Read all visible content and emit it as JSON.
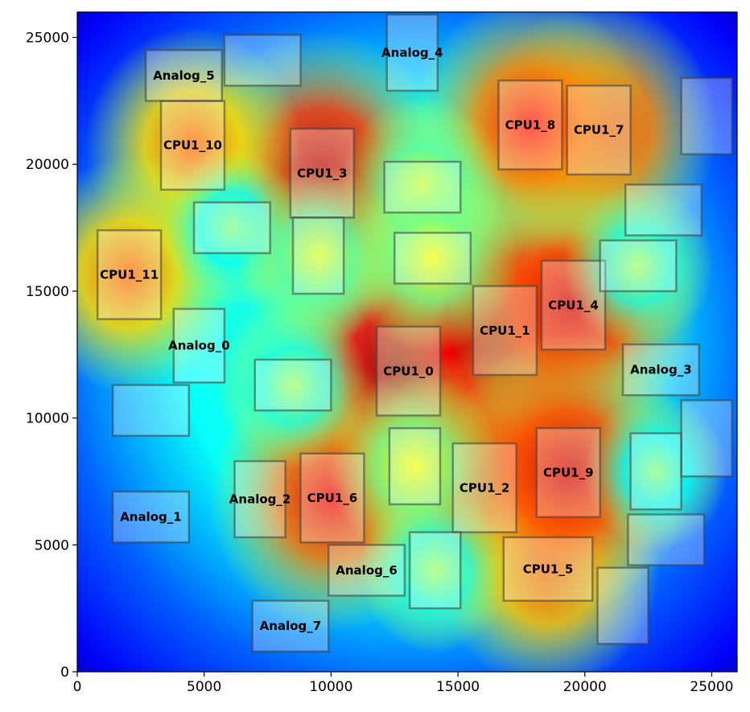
{
  "chart_data": {
    "type": "heatmap",
    "title": "",
    "xlabel": "",
    "ylabel": "",
    "xlim": [
      0,
      26000
    ],
    "ylim": [
      0,
      26000
    ],
    "xticks": [
      0,
      5000,
      10000,
      15000,
      20000,
      25000
    ],
    "yticks": [
      0,
      5000,
      10000,
      15000,
      20000,
      25000
    ],
    "colormap": "jet",
    "colormap_stops": [
      "#00007f",
      "#0000ff",
      "#007fff",
      "#00ffff",
      "#7fff7f",
      "#ffff00",
      "#ff7f00",
      "#ff0000",
      "#7f0000"
    ],
    "blocks": [
      {
        "label": "CPU1_0",
        "x0": 11800,
        "y0": 10100,
        "x1": 14300,
        "y1": 13600,
        "power": 1.0
      },
      {
        "label": "CPU1_1",
        "x0": 15600,
        "y0": 11700,
        "x1": 18100,
        "y1": 15200,
        "power": 1.0
      },
      {
        "label": "CPU1_2",
        "x0": 14800,
        "y0": 5500,
        "x1": 17300,
        "y1": 9000,
        "power": 0.85
      },
      {
        "label": "CPU1_3",
        "x0": 8400,
        "y0": 17900,
        "x1": 10900,
        "y1": 21400,
        "power": 0.9
      },
      {
        "label": "CPU1_4",
        "x0": 18300,
        "y0": 12700,
        "x1": 20800,
        "y1": 16200,
        "power": 0.85
      },
      {
        "label": "CPU1_5",
        "x0": 16800,
        "y0": 2800,
        "x1": 20300,
        "y1": 5300,
        "power": 0.65
      },
      {
        "label": "CPU1_6",
        "x0": 8800,
        "y0": 5100,
        "x1": 11300,
        "y1": 8600,
        "power": 0.8
      },
      {
        "label": "CPU1_7",
        "x0": 19300,
        "y0": 19600,
        "x1": 21800,
        "y1": 23100,
        "power": 0.75
      },
      {
        "label": "CPU1_8",
        "x0": 16600,
        "y0": 19800,
        "x1": 19100,
        "y1": 23300,
        "power": 0.75
      },
      {
        "label": "CPU1_9",
        "x0": 18100,
        "y0": 6100,
        "x1": 20600,
        "y1": 9600,
        "power": 0.85
      },
      {
        "label": "CPU1_10",
        "x0": 3300,
        "y0": 19000,
        "x1": 5800,
        "y1": 22500,
        "power": 0.6
      },
      {
        "label": "CPU1_11",
        "x0": 800,
        "y0": 13900,
        "x1": 3300,
        "y1": 17400,
        "power": 0.6
      },
      {
        "label": "Analog_0",
        "x0": 3800,
        "y0": 11400,
        "x1": 5800,
        "y1": 14300,
        "power": 0.05
      },
      {
        "label": "Analog_1",
        "x0": 1400,
        "y0": 5100,
        "x1": 4400,
        "y1": 7100,
        "power": 0.05
      },
      {
        "label": "Analog_2",
        "x0": 6200,
        "y0": 5300,
        "x1": 8200,
        "y1": 8300,
        "power": 0.05
      },
      {
        "label": "Analog_3",
        "x0": 21500,
        "y0": 10900,
        "x1": 24500,
        "y1": 12900,
        "power": 0.05
      },
      {
        "label": "Analog_4",
        "x0": 12200,
        "y0": 22900,
        "x1": 14200,
        "y1": 25900,
        "power": 0.05
      },
      {
        "label": "Analog_5",
        "x0": 2700,
        "y0": 22500,
        "x1": 5700,
        "y1": 24500,
        "power": 0.05
      },
      {
        "label": "Analog_6",
        "x0": 9900,
        "y0": 3000,
        "x1": 12900,
        "y1": 5000,
        "power": 0.05
      },
      {
        "label": "Analog_7",
        "x0": 6900,
        "y0": 800,
        "x1": 9900,
        "y1": 2800,
        "power": 0.05
      },
      {
        "label": "",
        "x0": 5800,
        "y0": 23100,
        "x1": 8800,
        "y1": 25100,
        "power": 0.05
      },
      {
        "label": "",
        "x0": 12100,
        "y0": 18100,
        "x1": 15100,
        "y1": 20100,
        "power": 0.25
      },
      {
        "label": "",
        "x0": 4600,
        "y0": 16500,
        "x1": 7600,
        "y1": 18500,
        "power": 0.1
      },
      {
        "label": "",
        "x0": 8500,
        "y0": 14900,
        "x1": 10500,
        "y1": 17900,
        "power": 0.25
      },
      {
        "label": "",
        "x0": 12500,
        "y0": 15300,
        "x1": 15500,
        "y1": 17300,
        "power": 0.3
      },
      {
        "label": "",
        "x0": 7000,
        "y0": 10300,
        "x1": 10000,
        "y1": 12300,
        "power": 0.15
      },
      {
        "label": "",
        "x0": 1400,
        "y0": 9300,
        "x1": 4400,
        "y1": 11300,
        "power": 0.05
      },
      {
        "label": "",
        "x0": 12300,
        "y0": 6600,
        "x1": 14300,
        "y1": 9600,
        "power": 0.3
      },
      {
        "label": "",
        "x0": 13100,
        "y0": 2500,
        "x1": 15100,
        "y1": 5500,
        "power": 0.15
      },
      {
        "label": "",
        "x0": 20600,
        "y0": 15000,
        "x1": 23600,
        "y1": 17000,
        "power": 0.15
      },
      {
        "label": "",
        "x0": 21600,
        "y0": 17200,
        "x1": 24600,
        "y1": 19200,
        "power": 0.05
      },
      {
        "label": "",
        "x0": 23800,
        "y0": 20400,
        "x1": 25800,
        "y1": 23400,
        "power": 0.05
      },
      {
        "label": "",
        "x0": 21800,
        "y0": 6400,
        "x1": 23800,
        "y1": 9400,
        "power": 0.1
      },
      {
        "label": "",
        "x0": 23800,
        "y0": 7700,
        "x1": 25800,
        "y1": 10700,
        "power": 0.05
      },
      {
        "label": "",
        "x0": 21700,
        "y0": 4200,
        "x1": 24700,
        "y1": 6200,
        "power": 0.05
      },
      {
        "label": "",
        "x0": 20500,
        "y0": 1100,
        "x1": 22500,
        "y1": 4100,
        "power": 0.05
      }
    ]
  }
}
